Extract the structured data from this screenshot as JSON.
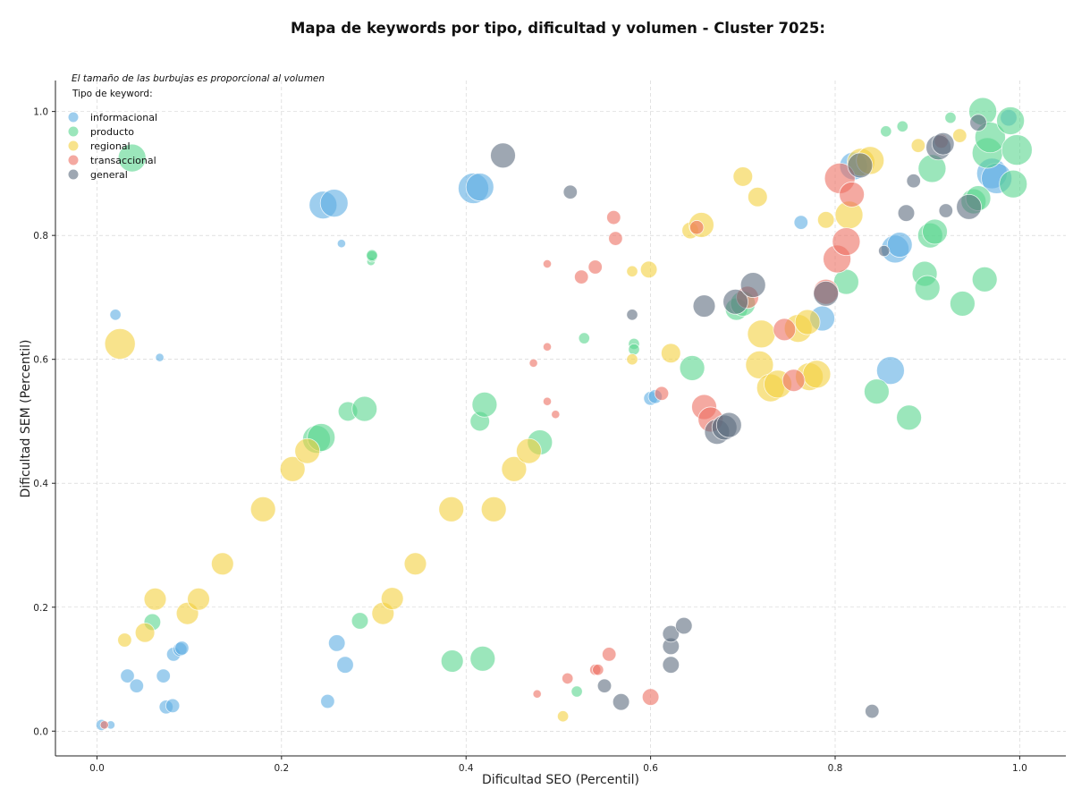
{
  "chart_data": {
    "type": "scatter",
    "title": "Mapa de keywords por tipo, dificultad y volumen - Cluster 7025:",
    "xlabel": "Dificultad SEO (Percentil)",
    "ylabel": "Dificultad SEM (Percentil)",
    "note": "El tamaño de las burbujas es proporcional al volumen",
    "legend_title": "Tipo de keyword:",
    "legend_position": "top-left",
    "xlim": [
      -0.045,
      1.05
    ],
    "ylim": [
      -0.04,
      1.05
    ],
    "grid": true,
    "x_ticks": [
      "0.0",
      "0.2",
      "0.4",
      "0.6",
      "0.8",
      "1.0"
    ],
    "y_ticks": [
      "0.0",
      "0.2",
      "0.4",
      "0.6",
      "0.8",
      "1.0"
    ],
    "series": [
      {
        "name": "informacional",
        "color": "#5DADE2",
        "points": [
          [
            0.005,
            0.01,
            4
          ],
          [
            0.015,
            0.01,
            3
          ],
          [
            0.02,
            0.672,
            4
          ],
          [
            0.033,
            0.089,
            5
          ],
          [
            0.043,
            0.073,
            5
          ],
          [
            0.068,
            0.603,
            3
          ],
          [
            0.072,
            0.089,
            5
          ],
          [
            0.075,
            0.039,
            5
          ],
          [
            0.082,
            0.041,
            5
          ],
          [
            0.083,
            0.124,
            5
          ],
          [
            0.09,
            0.132,
            5
          ],
          [
            0.092,
            0.134,
            5
          ],
          [
            0.25,
            0.048,
            5
          ],
          [
            0.245,
            0.849,
            10
          ],
          [
            0.257,
            0.852,
            10
          ],
          [
            0.26,
            0.142,
            6
          ],
          [
            0.265,
            0.787,
            3
          ],
          [
            0.269,
            0.107,
            6
          ],
          [
            0.408,
            0.876,
            11
          ],
          [
            0.415,
            0.878,
            10
          ],
          [
            0.6,
            0.537,
            5
          ],
          [
            0.605,
            0.54,
            5
          ],
          [
            0.763,
            0.821,
            5
          ],
          [
            0.786,
            0.666,
            9
          ],
          [
            0.82,
            0.912,
            10
          ],
          [
            0.86,
            0.582,
            10
          ],
          [
            0.865,
            0.778,
            10
          ],
          [
            0.87,
            0.785,
            9
          ],
          [
            0.97,
            0.9,
            11
          ],
          [
            0.975,
            0.892,
            11
          ],
          [
            0.988,
            0.99,
            6
          ]
        ]
      },
      {
        "name": "producto",
        "color": "#58D68D",
        "points": [
          [
            0.038,
            0.925,
            10
          ],
          [
            0.06,
            0.176,
            6
          ],
          [
            0.238,
            0.471,
            10
          ],
          [
            0.243,
            0.474,
            10
          ],
          [
            0.272,
            0.516,
            7
          ],
          [
            0.29,
            0.52,
            9
          ],
          [
            0.297,
            0.758,
            3
          ],
          [
            0.298,
            0.766,
            4
          ],
          [
            0.298,
            0.768,
            4
          ],
          [
            0.285,
            0.178,
            6
          ],
          [
            0.385,
            0.113,
            8
          ],
          [
            0.418,
            0.117,
            9
          ],
          [
            0.415,
            0.5,
            7
          ],
          [
            0.42,
            0.527,
            9
          ],
          [
            0.48,
            0.466,
            9
          ],
          [
            0.52,
            0.064,
            4
          ],
          [
            0.528,
            0.634,
            4
          ],
          [
            0.582,
            0.625,
            4
          ],
          [
            0.582,
            0.616,
            4
          ],
          [
            0.645,
            0.586,
            9
          ],
          [
            0.693,
            0.681,
            8
          ],
          [
            0.7,
            0.69,
            9
          ],
          [
            0.812,
            0.725,
            9
          ],
          [
            0.845,
            0.548,
            9
          ],
          [
            0.855,
            0.968,
            4
          ],
          [
            0.873,
            0.976,
            4
          ],
          [
            0.88,
            0.506,
            9
          ],
          [
            0.897,
            0.738,
            9
          ],
          [
            0.9,
            0.715,
            9
          ],
          [
            0.903,
            0.8,
            9
          ],
          [
            0.908,
            0.806,
            9
          ],
          [
            0.905,
            0.908,
            10
          ],
          [
            0.925,
            0.99,
            4
          ],
          [
            0.938,
            0.69,
            9
          ],
          [
            0.95,
            0.855,
            9
          ],
          [
            0.955,
            0.86,
            9
          ],
          [
            0.96,
            1.0,
            10
          ],
          [
            0.962,
            0.729,
            9
          ],
          [
            0.965,
            0.933,
            11
          ],
          [
            0.968,
            0.958,
            11
          ],
          [
            0.99,
            0.985,
            10
          ],
          [
            0.993,
            0.883,
            10
          ],
          [
            0.997,
            0.938,
            11
          ]
        ]
      },
      {
        "name": "regional",
        "color": "#F4D03F",
        "points": [
          [
            0.025,
            0.625,
            11
          ],
          [
            0.03,
            0.147,
            5
          ],
          [
            0.052,
            0.159,
            7
          ],
          [
            0.063,
            0.213,
            8
          ],
          [
            0.098,
            0.19,
            8
          ],
          [
            0.11,
            0.213,
            8
          ],
          [
            0.136,
            0.27,
            8
          ],
          [
            0.18,
            0.358,
            9
          ],
          [
            0.212,
            0.423,
            9
          ],
          [
            0.228,
            0.452,
            9
          ],
          [
            0.31,
            0.19,
            8
          ],
          [
            0.32,
            0.214,
            8
          ],
          [
            0.345,
            0.27,
            8
          ],
          [
            0.384,
            0.358,
            9
          ],
          [
            0.43,
            0.358,
            9
          ],
          [
            0.452,
            0.423,
            9
          ],
          [
            0.468,
            0.452,
            9
          ],
          [
            0.505,
            0.024,
            4
          ],
          [
            0.58,
            0.742,
            4
          ],
          [
            0.58,
            0.6,
            4
          ],
          [
            0.598,
            0.745,
            6
          ],
          [
            0.622,
            0.61,
            7
          ],
          [
            0.643,
            0.808,
            6
          ],
          [
            0.655,
            0.817,
            9
          ],
          [
            0.7,
            0.895,
            7
          ],
          [
            0.716,
            0.862,
            7
          ],
          [
            0.718,
            0.591,
            10
          ],
          [
            0.72,
            0.641,
            10
          ],
          [
            0.73,
            0.554,
            10
          ],
          [
            0.738,
            0.56,
            10
          ],
          [
            0.76,
            0.65,
            10
          ],
          [
            0.77,
            0.66,
            9
          ],
          [
            0.772,
            0.572,
            10
          ],
          [
            0.78,
            0.576,
            10
          ],
          [
            0.79,
            0.825,
            6
          ],
          [
            0.815,
            0.833,
            10
          ],
          [
            0.828,
            0.918,
            10
          ],
          [
            0.838,
            0.921,
            10
          ],
          [
            0.89,
            0.945,
            5
          ],
          [
            0.935,
            0.961,
            5
          ]
        ]
      },
      {
        "name": "transaccional",
        "color": "#EC7063",
        "points": [
          [
            0.008,
            0.01,
            3
          ],
          [
            0.473,
            0.594,
            3
          ],
          [
            0.477,
            0.06,
            3
          ],
          [
            0.488,
            0.754,
            3
          ],
          [
            0.488,
            0.62,
            3
          ],
          [
            0.488,
            0.532,
            3
          ],
          [
            0.497,
            0.511,
            3
          ],
          [
            0.51,
            0.085,
            4
          ],
          [
            0.525,
            0.733,
            5
          ],
          [
            0.54,
            0.099,
            4
          ],
          [
            0.543,
            0.099,
            4
          ],
          [
            0.54,
            0.749,
            5
          ],
          [
            0.555,
            0.124,
            5
          ],
          [
            0.56,
            0.829,
            5
          ],
          [
            0.562,
            0.795,
            5
          ],
          [
            0.6,
            0.055,
            6
          ],
          [
            0.612,
            0.545,
            5
          ],
          [
            0.65,
            0.813,
            5
          ],
          [
            0.658,
            0.523,
            9
          ],
          [
            0.665,
            0.503,
            9
          ],
          [
            0.705,
            0.7,
            8
          ],
          [
            0.745,
            0.648,
            8
          ],
          [
            0.755,
            0.566,
            8
          ],
          [
            0.79,
            0.709,
            9
          ],
          [
            0.802,
            0.762,
            10
          ],
          [
            0.805,
            0.892,
            11
          ],
          [
            0.812,
            0.79,
            10
          ],
          [
            0.818,
            0.866,
            9
          ],
          [
            0.915,
            0.952,
            5
          ]
        ]
      },
      {
        "name": "general",
        "color": "#5D6D7E",
        "points": [
          [
            0.44,
            0.929,
            9
          ],
          [
            0.513,
            0.87,
            5
          ],
          [
            0.55,
            0.073,
            5
          ],
          [
            0.568,
            0.047,
            6
          ],
          [
            0.58,
            0.672,
            4
          ],
          [
            0.622,
            0.107,
            6
          ],
          [
            0.622,
            0.137,
            6
          ],
          [
            0.622,
            0.157,
            6
          ],
          [
            0.636,
            0.17,
            6
          ],
          [
            0.658,
            0.686,
            8
          ],
          [
            0.672,
            0.483,
            9
          ],
          [
            0.68,
            0.49,
            9
          ],
          [
            0.685,
            0.494,
            9
          ],
          [
            0.692,
            0.693,
            9
          ],
          [
            0.711,
            0.72,
            9
          ],
          [
            0.79,
            0.706,
            9
          ],
          [
            0.84,
            0.032,
            5
          ],
          [
            0.827,
            0.913,
            9
          ],
          [
            0.853,
            0.775,
            4
          ],
          [
            0.877,
            0.836,
            6
          ],
          [
            0.885,
            0.888,
            5
          ],
          [
            0.912,
            0.942,
            9
          ],
          [
            0.917,
            0.948,
            8
          ],
          [
            0.92,
            0.84,
            5
          ],
          [
            0.945,
            0.846,
            9
          ],
          [
            0.955,
            0.982,
            6
          ]
        ]
      }
    ]
  }
}
